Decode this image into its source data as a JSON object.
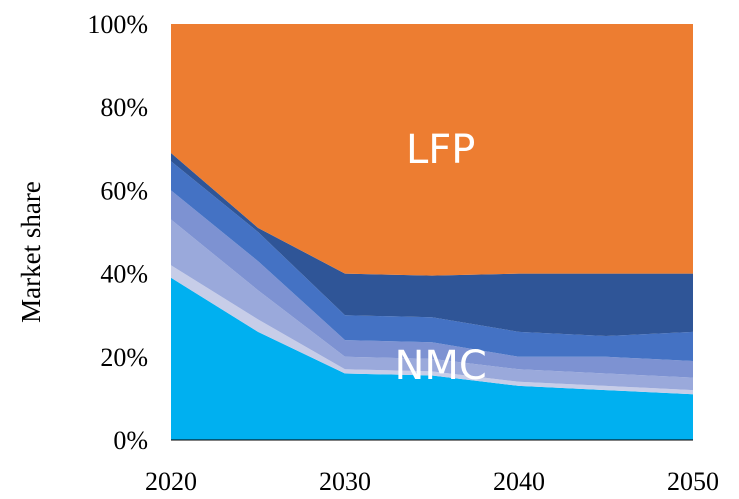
{
  "chart_data": {
    "type": "area",
    "stacked": true,
    "x": [
      2020,
      2025,
      2030,
      2035,
      2040,
      2045,
      2050
    ],
    "xticks": [
      "2020",
      "2030",
      "2040",
      "2050"
    ],
    "xlim": [
      2020,
      2050
    ],
    "ylim": [
      0,
      100
    ],
    "yticks": [
      "0%",
      "20%",
      "40%",
      "60%",
      "80%",
      "100%"
    ],
    "ylabel": "Market share",
    "grid": false,
    "legend": "none",
    "series": [
      {
        "key": "nmc_a",
        "color": "#00b0f0",
        "values": [
          39,
          26,
          16,
          15.5,
          13,
          12,
          11
        ]
      },
      {
        "key": "nmc_b",
        "color": "#c7cde8",
        "values": [
          3,
          3,
          1,
          1,
          1,
          1,
          1
        ]
      },
      {
        "key": "nmc_c",
        "color": "#9aa9db",
        "values": [
          11,
          7,
          3,
          3,
          3,
          3,
          3
        ]
      },
      {
        "key": "nmc_d",
        "color": "#7d92d2",
        "values": [
          7,
          7,
          4,
          4,
          3,
          4,
          4
        ]
      },
      {
        "key": "nmc_e",
        "color": "#4472c4",
        "values": [
          7,
          7,
          6,
          6,
          6,
          5,
          7
        ]
      },
      {
        "key": "nmc_f",
        "color": "#2f5597",
        "values": [
          2,
          1,
          10,
          10,
          14,
          15,
          14
        ]
      },
      {
        "key": "lfp",
        "color": "#ed7d31",
        "values": [
          31,
          49,
          60,
          60.5,
          60,
          60,
          60
        ]
      }
    ],
    "annotations": [
      {
        "text": "LFP",
        "x": 2035.5,
        "y": 70
      },
      {
        "text": "NMC",
        "x": 2035.5,
        "y": 18
      }
    ]
  }
}
